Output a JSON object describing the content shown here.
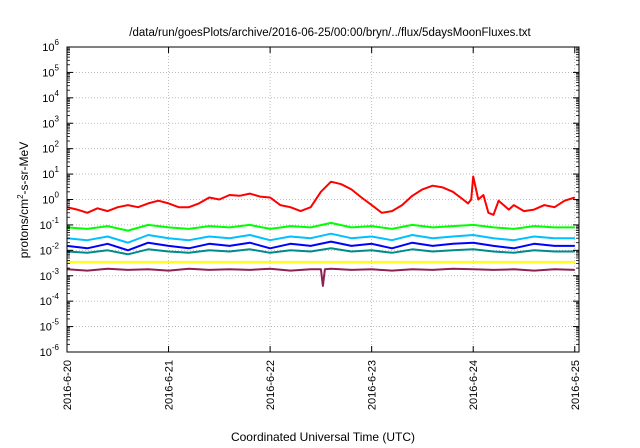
{
  "chart_data": {
    "type": "line",
    "title": "/data/run/goesPlots/archive/2016-06-25/00:00/bryn/../flux/5daysMoonFluxes.txt",
    "xlabel": "Coordinated Universal Time (UTC)",
    "ylabel": {
      "prefix": "protons/cm",
      "sup": "2",
      "suffix": "-s-sr-MeV"
    },
    "x_ticks": [
      "2016-6-20",
      "2016-6-21",
      "2016-6-22",
      "2016-6-23",
      "2016-6-24",
      "2016-6-25"
    ],
    "xlim": [
      "2016-06-20 00:00",
      "2016-06-25 01:00"
    ],
    "y_scale": "log",
    "y_ticks": [
      {
        "base": "10",
        "exp": "-6"
      },
      {
        "base": "10",
        "exp": "-5"
      },
      {
        "base": "10",
        "exp": "-4"
      },
      {
        "base": "10",
        "exp": "-3"
      },
      {
        "base": "10",
        "exp": "-2"
      },
      {
        "base": "10",
        "exp": "-1"
      },
      {
        "base": "10",
        "exp": "0"
      },
      {
        "base": "10",
        "exp": "1"
      },
      {
        "base": "10",
        "exp": "2"
      },
      {
        "base": "10",
        "exp": "3"
      },
      {
        "base": "10",
        "exp": "4"
      },
      {
        "base": "10",
        "exp": "5"
      },
      {
        "base": "10",
        "exp": "6"
      }
    ],
    "ylim": [
      1e-06,
      1000000.0
    ],
    "grid": true,
    "x_unit": "day of June 2016",
    "series": [
      {
        "color": "#ff0000",
        "x": [
          20.0,
          20.1,
          20.2,
          20.3,
          20.4,
          20.5,
          20.6,
          20.7,
          20.8,
          20.9,
          21.0,
          21.1,
          21.2,
          21.3,
          21.4,
          21.5,
          21.6,
          21.7,
          21.8,
          21.9,
          22.0,
          22.1,
          22.2,
          22.3,
          22.4,
          22.5,
          22.6,
          22.7,
          22.8,
          22.9,
          23.0,
          23.1,
          23.2,
          23.3,
          23.4,
          23.5,
          23.6,
          23.7,
          23.8,
          23.9,
          23.95,
          23.98,
          24.0,
          24.05,
          24.1,
          24.15,
          24.2,
          24.25,
          24.3,
          24.35,
          24.4,
          24.5,
          24.6,
          24.7,
          24.8,
          24.9,
          25.0
        ],
        "values": [
          0.5,
          0.4,
          0.3,
          0.45,
          0.35,
          0.5,
          0.6,
          0.5,
          0.7,
          0.9,
          0.7,
          0.5,
          0.5,
          0.7,
          1.2,
          1.0,
          1.5,
          1.4,
          1.7,
          1.3,
          1.2,
          0.6,
          0.5,
          0.35,
          0.5,
          2.0,
          5.0,
          4.0,
          2.5,
          1.2,
          0.6,
          0.3,
          0.35,
          0.6,
          1.4,
          2.5,
          3.5,
          3.0,
          2.0,
          1.0,
          0.7,
          1.0,
          8.0,
          1.0,
          1.5,
          0.3,
          0.25,
          0.9,
          0.6,
          0.4,
          0.6,
          0.35,
          0.4,
          0.6,
          0.5,
          0.9,
          1.2
        ]
      },
      {
        "color": "#00ff00",
        "x": [
          20.0,
          20.2,
          20.4,
          20.6,
          20.8,
          21.0,
          21.2,
          21.4,
          21.6,
          21.8,
          22.0,
          22.2,
          22.4,
          22.6,
          22.8,
          23.0,
          23.2,
          23.4,
          23.6,
          23.8,
          24.0,
          24.2,
          24.4,
          24.6,
          24.8,
          25.0
        ],
        "values": [
          0.08,
          0.07,
          0.09,
          0.06,
          0.1,
          0.08,
          0.07,
          0.09,
          0.08,
          0.1,
          0.07,
          0.09,
          0.08,
          0.12,
          0.08,
          0.09,
          0.07,
          0.1,
          0.08,
          0.09,
          0.1,
          0.08,
          0.07,
          0.09,
          0.08,
          0.08
        ]
      },
      {
        "color": "#00c0ff",
        "x": [
          20.0,
          20.2,
          20.4,
          20.6,
          20.8,
          21.0,
          21.2,
          21.4,
          21.6,
          21.8,
          22.0,
          22.2,
          22.4,
          22.6,
          22.8,
          23.0,
          23.2,
          23.4,
          23.6,
          23.8,
          24.0,
          24.2,
          24.4,
          24.6,
          24.8,
          25.0
        ],
        "values": [
          0.03,
          0.025,
          0.035,
          0.02,
          0.04,
          0.03,
          0.025,
          0.035,
          0.03,
          0.04,
          0.025,
          0.035,
          0.03,
          0.045,
          0.03,
          0.035,
          0.025,
          0.04,
          0.03,
          0.035,
          0.04,
          0.03,
          0.025,
          0.035,
          0.03,
          0.03
        ]
      },
      {
        "color": "#0000ff",
        "x": [
          20.0,
          20.2,
          20.4,
          20.6,
          20.8,
          21.0,
          21.2,
          21.4,
          21.6,
          21.8,
          22.0,
          22.2,
          22.4,
          22.6,
          22.8,
          23.0,
          23.2,
          23.4,
          23.6,
          23.8,
          24.0,
          24.2,
          24.4,
          24.6,
          24.8,
          25.0
        ],
        "values": [
          0.015,
          0.012,
          0.018,
          0.01,
          0.02,
          0.015,
          0.012,
          0.018,
          0.015,
          0.02,
          0.012,
          0.018,
          0.015,
          0.022,
          0.015,
          0.018,
          0.012,
          0.02,
          0.015,
          0.018,
          0.02,
          0.015,
          0.012,
          0.018,
          0.015,
          0.015
        ]
      },
      {
        "color": "#008b8b",
        "x": [
          20.0,
          20.2,
          20.4,
          20.6,
          20.8,
          21.0,
          21.2,
          21.4,
          21.6,
          21.8,
          22.0,
          22.2,
          22.4,
          22.6,
          22.8,
          23.0,
          23.2,
          23.4,
          23.6,
          23.8,
          24.0,
          24.2,
          24.4,
          24.6,
          24.8,
          25.0
        ],
        "values": [
          0.009,
          0.008,
          0.01,
          0.007,
          0.011,
          0.009,
          0.008,
          0.01,
          0.009,
          0.011,
          0.008,
          0.01,
          0.009,
          0.012,
          0.009,
          0.01,
          0.008,
          0.011,
          0.009,
          0.01,
          0.011,
          0.009,
          0.008,
          0.01,
          0.009,
          0.009
        ]
      },
      {
        "color": "#ffff00",
        "x": [
          20.0,
          20.5,
          21.0,
          21.5,
          22.0,
          22.5,
          23.0,
          23.5,
          24.0,
          24.5,
          25.0
        ],
        "values": [
          0.0035,
          0.0035,
          0.0035,
          0.0035,
          0.0035,
          0.0035,
          0.0035,
          0.0035,
          0.0035,
          0.0035,
          0.0035
        ]
      },
      {
        "color": "#8b2252",
        "x": [
          20.0,
          20.2,
          20.4,
          20.6,
          20.8,
          21.0,
          21.2,
          21.4,
          21.6,
          21.8,
          22.0,
          22.2,
          22.4,
          22.5,
          22.52,
          22.54,
          22.6,
          22.8,
          23.0,
          23.2,
          23.4,
          23.6,
          23.8,
          24.0,
          24.2,
          24.4,
          24.6,
          24.8,
          25.0
        ],
        "values": [
          0.0018,
          0.0016,
          0.0019,
          0.0017,
          0.0018,
          0.0016,
          0.0019,
          0.0017,
          0.0018,
          0.0017,
          0.0019,
          0.0016,
          0.0018,
          0.0018,
          0.0004,
          0.0018,
          0.0019,
          0.0017,
          0.0018,
          0.0016,
          0.0018,
          0.0017,
          0.0019,
          0.0018,
          0.0017,
          0.0018,
          0.0016,
          0.0018,
          0.0017
        ]
      }
    ]
  }
}
